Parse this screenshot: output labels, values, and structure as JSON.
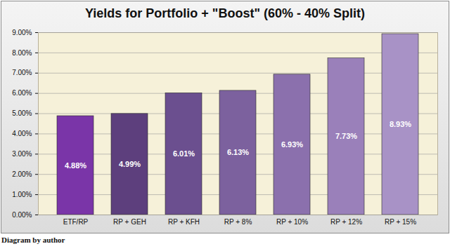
{
  "chart_data": {
    "type": "bar",
    "title": "Yields for Portfolio + \"Boost\" (60% - 40% Split)",
    "caption": "Diagram by author",
    "categories": [
      "ETF/RP",
      "RP + GEH",
      "RP + KFH",
      "RP + 8%",
      "RP + 10%",
      "RP + 12%",
      "RP + 15%"
    ],
    "values": [
      4.88,
      4.99,
      6.01,
      6.13,
      6.93,
      7.73,
      8.93
    ],
    "value_labels": [
      "4.88%",
      "4.99%",
      "6.01%",
      "6.13%",
      "6.93%",
      "7.73%",
      "8.93%"
    ],
    "colors": [
      "#7a35a8",
      "#5d3f7d",
      "#6b4f8f",
      "#7c619e",
      "#8b70ad",
      "#9a80ba",
      "#a892c6"
    ],
    "ylim": [
      0,
      9
    ],
    "yticks": [
      {
        "value": 0,
        "label": "0.00%"
      },
      {
        "value": 1,
        "label": "1.00%"
      },
      {
        "value": 2,
        "label": "2.00%"
      },
      {
        "value": 3,
        "label": "3.00%"
      },
      {
        "value": 4,
        "label": "4.00%"
      },
      {
        "value": 5,
        "label": "5.00%"
      },
      {
        "value": 6,
        "label": "6.00%"
      },
      {
        "value": 7,
        "label": "7.00%"
      },
      {
        "value": 8,
        "label": "8.00%"
      },
      {
        "value": 9,
        "label": "9.00%"
      }
    ],
    "grid": true,
    "data_labels": true
  }
}
